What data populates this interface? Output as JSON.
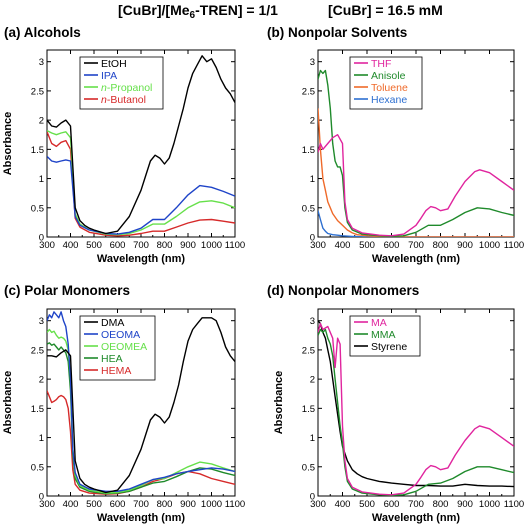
{
  "header": {
    "ratio_prefix": "[CuBr]/[Me",
    "ratio_sub": "6",
    "ratio_suffix": "-TREN] = 1/1",
    "conc": "[CuBr] = 16.5 mM"
  },
  "chart_data": [
    {
      "type": "line",
      "title": "(a) Alcohols",
      "xlabel": "Wavelength (nm)",
      "ylabel": "Absorbance",
      "xlim": [
        300,
        1100
      ],
      "ylim": [
        0,
        3.2
      ],
      "xticks": [
        "300",
        "400",
        "500",
        "600",
        "700",
        "800",
        "900",
        "1000",
        "1100"
      ],
      "yticks": [
        "0",
        "0.5",
        "1",
        "1.5",
        "2",
        "2.5",
        "3"
      ],
      "legend_position": "top-left",
      "grid": false,
      "series": [
        {
          "name": "EtOH",
          "color": "#000000",
          "x": [
            300,
            320,
            340,
            360,
            380,
            400,
            420,
            440,
            460,
            480,
            500,
            550,
            600,
            650,
            700,
            720,
            740,
            760,
            780,
            800,
            820,
            840,
            860,
            880,
            900,
            920,
            940,
            960,
            980,
            1000,
            1020,
            1040,
            1060,
            1080,
            1100
          ],
          "y": [
            2.0,
            1.9,
            1.88,
            1.95,
            2.0,
            1.9,
            0.5,
            0.28,
            0.2,
            0.15,
            0.12,
            0.06,
            0.1,
            0.35,
            0.8,
            1.05,
            1.3,
            1.4,
            1.35,
            1.25,
            1.35,
            1.6,
            1.9,
            2.2,
            2.55,
            2.8,
            2.95,
            3.1,
            3.0,
            3.05,
            2.9,
            2.7,
            2.55,
            2.45,
            2.3
          ]
        },
        {
          "name": "IPA",
          "color": "#1f44c8",
          "x": [
            300,
            320,
            340,
            360,
            380,
            400,
            420,
            440,
            480,
            550,
            600,
            650,
            700,
            750,
            800,
            850,
            900,
            950,
            1000,
            1050,
            1100
          ],
          "y": [
            1.38,
            1.3,
            1.28,
            1.3,
            1.32,
            1.3,
            0.35,
            0.2,
            0.12,
            0.06,
            0.05,
            0.08,
            0.15,
            0.3,
            0.3,
            0.5,
            0.72,
            0.88,
            0.85,
            0.78,
            0.7
          ]
        },
        {
          "name": "n-Propanol",
          "color": "#66e04a",
          "x": [
            300,
            320,
            340,
            360,
            380,
            400,
            420,
            440,
            480,
            550,
            600,
            650,
            700,
            750,
            800,
            850,
            900,
            950,
            1000,
            1050,
            1100
          ],
          "y": [
            1.82,
            1.78,
            1.75,
            1.78,
            1.8,
            1.7,
            0.4,
            0.22,
            0.12,
            0.05,
            0.04,
            0.06,
            0.12,
            0.22,
            0.22,
            0.35,
            0.5,
            0.6,
            0.62,
            0.58,
            0.5
          ]
        },
        {
          "name": "n-Butanol",
          "color": "#d62a2a",
          "x": [
            300,
            320,
            340,
            360,
            380,
            400,
            420,
            440,
            480,
            550,
            600,
            650,
            700,
            750,
            800,
            850,
            900,
            950,
            1000,
            1050,
            1100
          ],
          "y": [
            1.8,
            1.6,
            1.55,
            1.62,
            1.65,
            1.5,
            0.32,
            0.17,
            0.08,
            0.03,
            0.02,
            0.03,
            0.06,
            0.1,
            0.1,
            0.17,
            0.24,
            0.29,
            0.3,
            0.27,
            0.24
          ]
        }
      ]
    },
    {
      "type": "line",
      "title": "(b) Nonpolar Solvents",
      "xlabel": "Wavelength (nm)",
      "ylabel": "",
      "xlim": [
        300,
        1100
      ],
      "ylim": [
        0,
        3.2
      ],
      "xticks": [
        "300",
        "400",
        "500",
        "600",
        "700",
        "800",
        "900",
        "1000",
        "1100"
      ],
      "yticks": [
        "0",
        "0.5",
        "1",
        "1.5",
        "2",
        "2.5",
        "3"
      ],
      "legend_position": "top-left",
      "grid": false,
      "series": [
        {
          "name": "THF",
          "color": "#e0259e",
          "x": [
            300,
            310,
            320,
            340,
            360,
            380,
            400,
            410,
            420,
            440,
            480,
            550,
            600,
            650,
            700,
            720,
            740,
            760,
            780,
            800,
            830,
            860,
            900,
            940,
            960,
            1000,
            1050,
            1100
          ],
          "y": [
            1.45,
            1.6,
            1.5,
            1.6,
            1.7,
            1.75,
            1.6,
            0.6,
            0.3,
            0.15,
            0.07,
            0.03,
            0.02,
            0.05,
            0.2,
            0.32,
            0.45,
            0.52,
            0.5,
            0.45,
            0.48,
            0.7,
            0.95,
            1.12,
            1.15,
            1.1,
            0.95,
            0.8
          ]
        },
        {
          "name": "Anisole",
          "color": "#1f8a2b",
          "x": [
            300,
            310,
            320,
            330,
            340,
            350,
            360,
            370,
            380,
            390,
            400,
            410,
            420,
            440,
            480,
            550,
            600,
            650,
            700,
            750,
            800,
            850,
            900,
            950,
            1000,
            1050,
            1100
          ],
          "y": [
            2.7,
            2.85,
            2.8,
            2.85,
            2.6,
            2.2,
            1.6,
            1.3,
            1.2,
            1.2,
            1.05,
            0.5,
            0.25,
            0.12,
            0.05,
            0.02,
            0.01,
            0.02,
            0.08,
            0.2,
            0.2,
            0.3,
            0.42,
            0.5,
            0.48,
            0.42,
            0.37
          ]
        },
        {
          "name": "Toluene",
          "color": "#ef6a2a",
          "x": [
            300,
            310,
            320,
            330,
            340,
            350,
            360,
            380,
            400,
            420,
            440,
            460,
            500,
            550,
            600,
            650,
            700,
            800,
            900,
            1000,
            1100
          ],
          "y": [
            2.2,
            1.5,
            1.0,
            0.8,
            0.6,
            0.5,
            0.4,
            0.28,
            0.2,
            0.12,
            0.07,
            0.04,
            0.02,
            0.01,
            0.01,
            0.0,
            0.0,
            0.0,
            0.0,
            0.0,
            0.0
          ]
        },
        {
          "name": "Hexane",
          "color": "#2d6fd0",
          "x": [
            300,
            310,
            320,
            330,
            340,
            360,
            380,
            400,
            440,
            500,
            600,
            700,
            800,
            900,
            1000,
            1100
          ],
          "y": [
            0.45,
            0.3,
            0.15,
            0.1,
            0.06,
            0.04,
            0.03,
            0.02,
            0.01,
            0.0,
            0.0,
            0.0,
            0.0,
            0.0,
            0.0,
            0.0
          ]
        }
      ]
    },
    {
      "type": "line",
      "title": "(c) Polar Monomers",
      "xlabel": "Wavelength (nm)",
      "ylabel": "Absorbance",
      "xlim": [
        300,
        1100
      ],
      "ylim": [
        0,
        3.2
      ],
      "xticks": [
        "300",
        "400",
        "500",
        "600",
        "700",
        "800",
        "900",
        "1000",
        "1100"
      ],
      "yticks": [
        "0",
        "0.5",
        "1",
        "1.5",
        "2",
        "2.5",
        "3"
      ],
      "legend_position": "top-left",
      "grid": false,
      "series": [
        {
          "name": "DMA",
          "color": "#000000",
          "x": [
            300,
            320,
            340,
            360,
            380,
            400,
            420,
            440,
            460,
            480,
            500,
            550,
            600,
            650,
            700,
            720,
            740,
            760,
            780,
            800,
            820,
            840,
            860,
            880,
            900,
            920,
            940,
            960,
            980,
            1000,
            1020,
            1040,
            1060,
            1080,
            1100
          ],
          "y": [
            2.4,
            2.4,
            2.38,
            2.45,
            2.5,
            2.4,
            0.6,
            0.3,
            0.2,
            0.15,
            0.12,
            0.06,
            0.1,
            0.35,
            0.8,
            1.05,
            1.3,
            1.4,
            1.35,
            1.25,
            1.35,
            1.6,
            1.9,
            2.3,
            2.65,
            2.85,
            2.95,
            3.05,
            3.05,
            3.05,
            3.0,
            2.8,
            2.55,
            2.4,
            2.3
          ]
        },
        {
          "name": "OEOMA",
          "color": "#1f44c8",
          "x": [
            300,
            310,
            320,
            330,
            340,
            350,
            360,
            370,
            380,
            390,
            400,
            410,
            420,
            440,
            480,
            550,
            600,
            650,
            700,
            750,
            800,
            850,
            900,
            950,
            1000,
            1050,
            1100
          ],
          "y": [
            3.0,
            3.1,
            3.05,
            3.15,
            3.1,
            3.05,
            3.15,
            3.0,
            2.9,
            2.6,
            2.0,
            0.8,
            0.4,
            0.2,
            0.12,
            0.08,
            0.08,
            0.12,
            0.2,
            0.28,
            0.32,
            0.38,
            0.42,
            0.45,
            0.48,
            0.46,
            0.42
          ]
        },
        {
          "name": "OEOMEA",
          "color": "#66e04a",
          "x": [
            300,
            310,
            320,
            330,
            340,
            350,
            360,
            370,
            380,
            390,
            400,
            410,
            420,
            440,
            480,
            550,
            600,
            650,
            700,
            750,
            800,
            850,
            900,
            950,
            1000,
            1050,
            1100
          ],
          "y": [
            2.8,
            2.85,
            2.8,
            2.82,
            2.75,
            2.7,
            2.72,
            2.7,
            2.65,
            2.5,
            2.0,
            0.8,
            0.35,
            0.18,
            0.1,
            0.05,
            0.06,
            0.1,
            0.18,
            0.28,
            0.3,
            0.4,
            0.5,
            0.58,
            0.55,
            0.48,
            0.42
          ]
        },
        {
          "name": "HEA",
          "color": "#1f8a2b",
          "x": [
            300,
            310,
            320,
            330,
            340,
            350,
            360,
            370,
            380,
            390,
            400,
            410,
            420,
            440,
            480,
            550,
            600,
            650,
            700,
            750,
            800,
            850,
            900,
            950,
            1000,
            1050,
            1100
          ],
          "y": [
            2.6,
            2.62,
            2.58,
            2.6,
            2.55,
            2.5,
            2.55,
            2.5,
            2.45,
            2.3,
            1.8,
            0.7,
            0.3,
            0.15,
            0.08,
            0.04,
            0.05,
            0.08,
            0.15,
            0.22,
            0.25,
            0.33,
            0.42,
            0.48,
            0.46,
            0.4,
            0.35
          ]
        },
        {
          "name": "HEMA",
          "color": "#d62a2a",
          "x": [
            300,
            310,
            320,
            330,
            340,
            350,
            360,
            370,
            380,
            390,
            400,
            410,
            420,
            440,
            480,
            550,
            600,
            650,
            700,
            750,
            800,
            850,
            900,
            950,
            1000,
            1050,
            1100
          ],
          "y": [
            1.8,
            1.7,
            1.6,
            1.62,
            1.65,
            1.7,
            1.72,
            1.7,
            1.65,
            1.5,
            1.1,
            0.45,
            0.2,
            0.1,
            0.05,
            0.03,
            0.04,
            0.08,
            0.15,
            0.25,
            0.3,
            0.38,
            0.42,
            0.38,
            0.3,
            0.25,
            0.2
          ]
        }
      ]
    },
    {
      "type": "line",
      "title": "(d) Nonpolar Monomers",
      "xlabel": "Wavelength (nm)",
      "ylabel": "Absorbance",
      "xlim": [
        300,
        1100
      ],
      "ylim": [
        0,
        3.2
      ],
      "xticks": [
        "300",
        "400",
        "500",
        "600",
        "700",
        "800",
        "900",
        "1000",
        "1100"
      ],
      "yticks": [
        "0",
        "0.5",
        "1",
        "1.5",
        "2",
        "2.5",
        "3"
      ],
      "legend_position": "top-left",
      "grid": false,
      "series": [
        {
          "name": "MA",
          "color": "#e0259e",
          "x": [
            300,
            310,
            320,
            340,
            360,
            370,
            380,
            390,
            400,
            410,
            420,
            440,
            480,
            550,
            600,
            650,
            700,
            720,
            740,
            760,
            780,
            800,
            830,
            860,
            900,
            940,
            960,
            1000,
            1050,
            1100
          ],
          "y": [
            2.8,
            2.95,
            2.85,
            2.9,
            2.7,
            2.2,
            2.7,
            2.6,
            1.2,
            0.6,
            0.3,
            0.15,
            0.07,
            0.03,
            0.02,
            0.05,
            0.2,
            0.32,
            0.45,
            0.52,
            0.5,
            0.45,
            0.48,
            0.7,
            0.95,
            1.15,
            1.2,
            1.15,
            1.0,
            0.85
          ]
        },
        {
          "name": "MMA",
          "color": "#1f8a2b",
          "x": [
            300,
            310,
            320,
            330,
            340,
            350,
            360,
            370,
            380,
            390,
            400,
            410,
            420,
            440,
            480,
            550,
            600,
            650,
            700,
            750,
            800,
            850,
            900,
            950,
            1000,
            1050,
            1100
          ],
          "y": [
            2.75,
            2.85,
            2.8,
            2.85,
            2.7,
            2.6,
            2.4,
            2.0,
            1.6,
            1.2,
            0.9,
            0.5,
            0.25,
            0.12,
            0.05,
            0.02,
            0.01,
            0.02,
            0.08,
            0.2,
            0.22,
            0.3,
            0.42,
            0.5,
            0.5,
            0.45,
            0.4
          ]
        },
        {
          "name": "Styrene",
          "color": "#000000",
          "x": [
            300,
            310,
            320,
            330,
            340,
            350,
            360,
            370,
            380,
            390,
            400,
            420,
            440,
            460,
            480,
            500,
            550,
            600,
            650,
            700,
            750,
            800,
            850,
            900,
            950,
            1000,
            1050,
            1100
          ],
          "y": [
            3.0,
            2.95,
            2.8,
            2.7,
            2.5,
            2.3,
            2.0,
            1.7,
            1.4,
            1.1,
            0.85,
            0.6,
            0.45,
            0.38,
            0.33,
            0.3,
            0.25,
            0.22,
            0.2,
            0.18,
            0.18,
            0.17,
            0.17,
            0.2,
            0.18,
            0.17,
            0.17,
            0.16
          ]
        }
      ]
    }
  ]
}
